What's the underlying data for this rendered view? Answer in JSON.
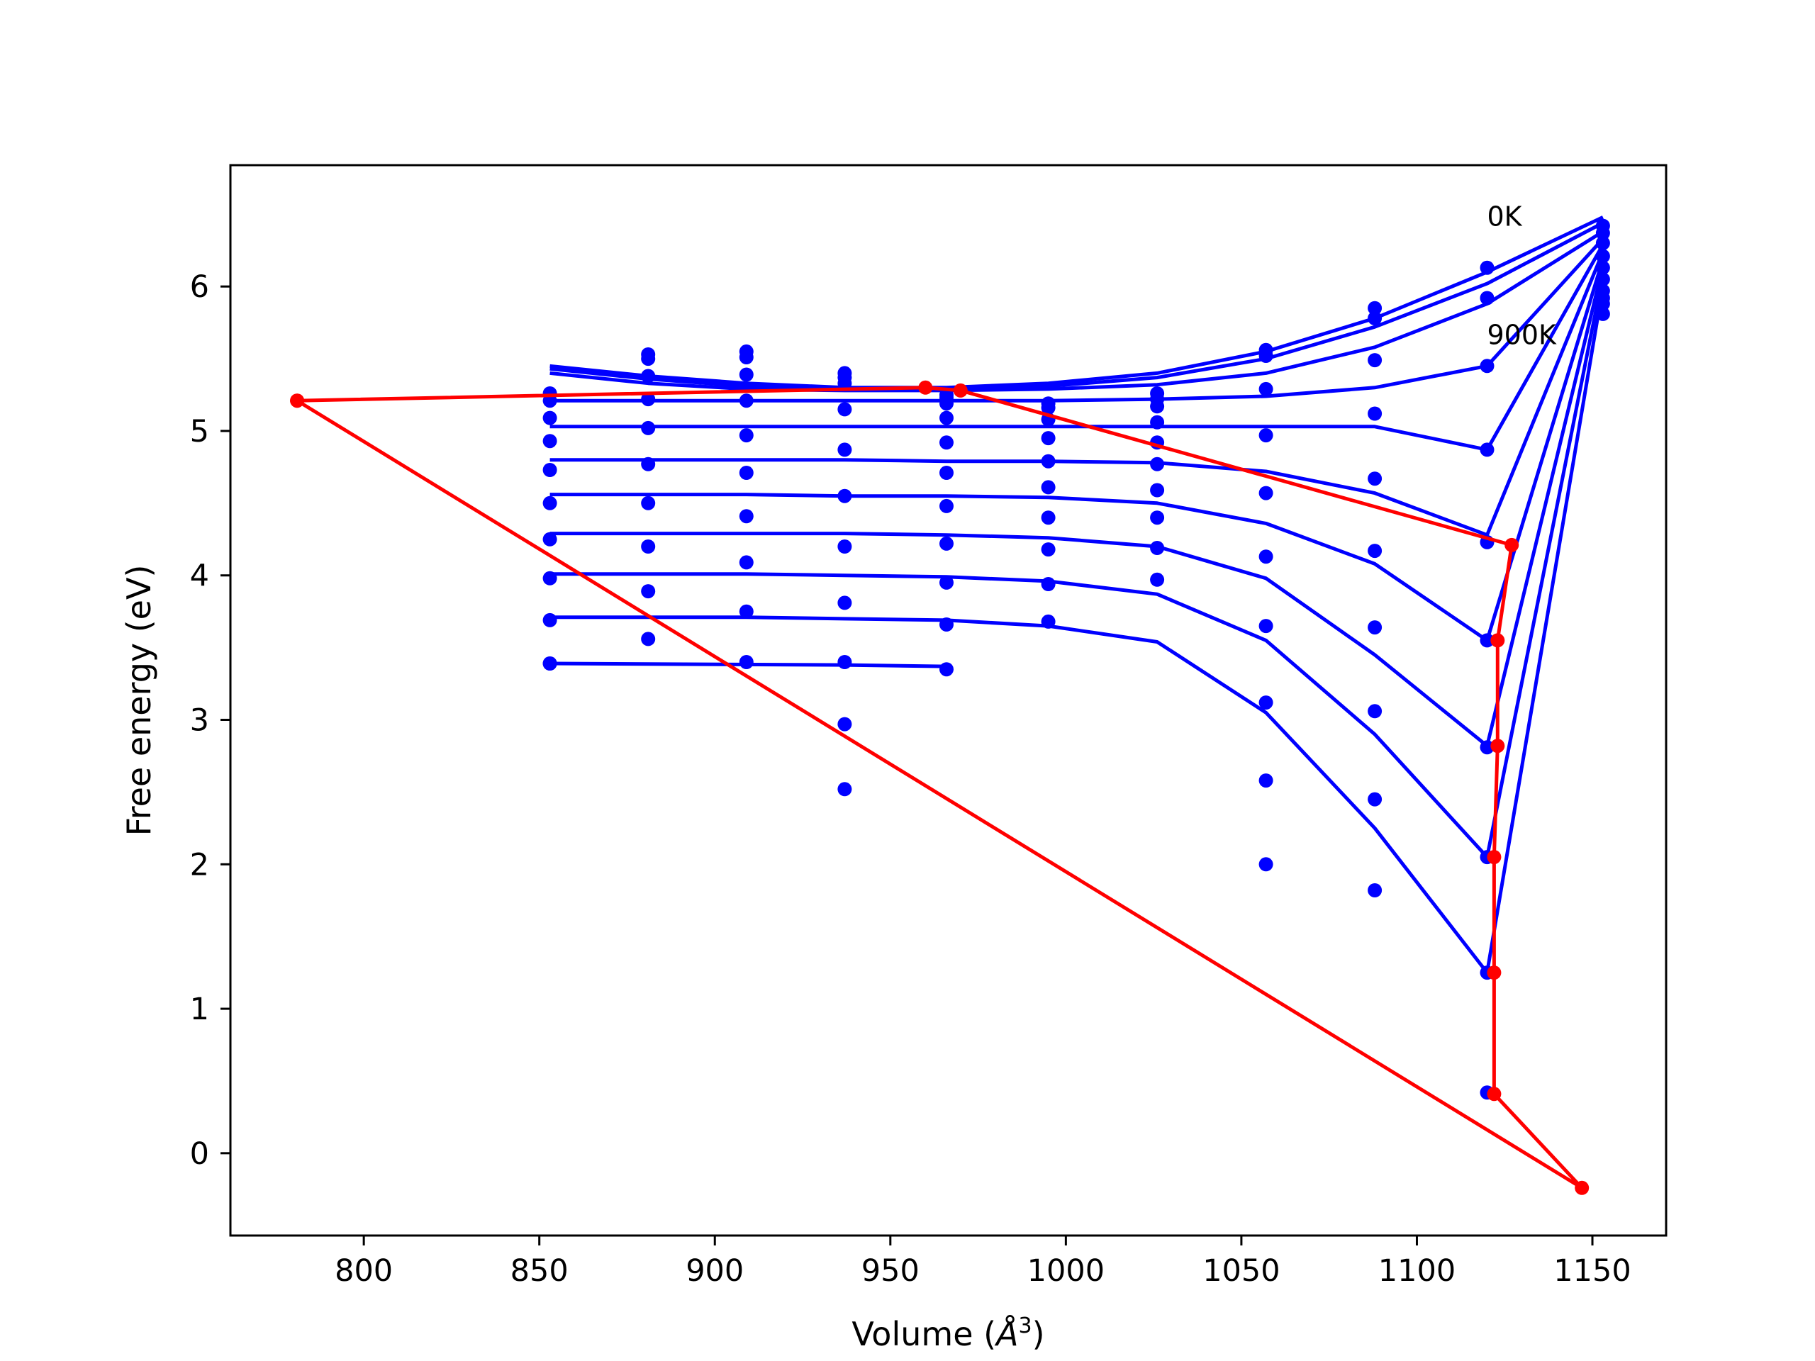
{
  "chart_data": {
    "type": "scatter",
    "xlabel_prefix": "Volume (",
    "xlabel_unit": "Å",
    "xlabel_exp": "3",
    "xlabel_suffix": ")",
    "ylabel": "Free energy (eV)",
    "xlim": [
      762,
      1171
    ],
    "ylim": [
      -0.57,
      6.84
    ],
    "xticks": [
      800,
      850,
      900,
      950,
      1000,
      1050,
      1100,
      1150
    ],
    "yticks": [
      0,
      1,
      2,
      3,
      4,
      5,
      6
    ],
    "grid": false,
    "annotations": [
      {
        "text": "0K",
        "x": 1120,
        "y": 6.42
      },
      {
        "text": "900K",
        "x": 1120,
        "y": 5.6
      }
    ],
    "colors": {
      "points": "#0000ff",
      "fits": "#0000ff",
      "path": "#ff0000"
    },
    "series": [
      {
        "x": [
          853,
          881,
          909,
          937,
          966,
          995,
          1026,
          1057,
          1088,
          1120,
          1153
        ],
        "y": [
          5.26,
          5.53,
          5.55,
          5.4,
          5.25,
          5.19,
          5.26,
          5.56,
          5.85,
          6.13,
          6.42
        ],
        "fit_y": [
          5.45,
          5.38,
          5.33,
          5.3,
          5.3,
          5.33,
          5.4,
          5.55,
          5.78,
          6.1,
          6.48
        ]
      },
      {
        "x": [
          853,
          881,
          909,
          937,
          966,
          995,
          1026,
          1057,
          1088,
          1120,
          1153
        ],
        "y": [
          5.21,
          5.5,
          5.51,
          5.37,
          5.23,
          5.16,
          5.22,
          5.52,
          5.78,
          5.92,
          6.37
        ],
        "fit_y": [
          5.43,
          5.36,
          5.31,
          5.29,
          5.29,
          5.31,
          5.37,
          5.5,
          5.72,
          6.02,
          6.44
        ]
      },
      {
        "x": [
          853,
          881,
          909,
          937,
          966,
          995,
          1026,
          1057,
          1088,
          1120,
          1153
        ],
        "y": [
          5.09,
          5.38,
          5.39,
          5.33,
          5.19,
          5.08,
          5.17,
          5.29,
          5.49,
          5.45,
          6.3
        ],
        "fit_y": [
          5.4,
          5.33,
          5.29,
          5.28,
          5.28,
          5.29,
          5.32,
          5.4,
          5.58,
          5.88,
          6.38
        ]
      },
      {
        "x": [
          853,
          881,
          909,
          937,
          966,
          995,
          1026,
          1057,
          1088,
          1120,
          1153
        ],
        "y": [
          4.93,
          5.22,
          5.21,
          5.15,
          5.09,
          4.95,
          5.06,
          4.97,
          5.12,
          4.87,
          6.21
        ],
        "fit_y": [
          5.21,
          5.21,
          5.21,
          5.21,
          5.21,
          5.21,
          5.22,
          5.24,
          5.3,
          5.45,
          6.33
        ]
      },
      {
        "x": [
          853,
          881,
          909,
          937,
          966,
          995,
          1026,
          1057,
          1088,
          1120,
          1153
        ],
        "y": [
          4.73,
          5.02,
          4.97,
          4.87,
          4.92,
          4.79,
          4.92,
          4.57,
          4.67,
          4.23,
          6.13
        ],
        "fit_y": [
          5.03,
          5.03,
          5.03,
          5.03,
          5.03,
          5.03,
          5.03,
          5.03,
          5.03,
          4.87,
          6.29
        ]
      },
      {
        "x": [
          853,
          881,
          909,
          937,
          966,
          995,
          1026,
          1057,
          1088,
          1120,
          1153
        ],
        "y": [
          4.5,
          4.77,
          4.71,
          4.55,
          4.71,
          4.61,
          4.77,
          4.13,
          4.17,
          3.55,
          6.05
        ],
        "fit_y": [
          4.8,
          4.8,
          4.8,
          4.8,
          4.79,
          4.79,
          4.78,
          4.72,
          4.57,
          4.28,
          6.24
        ]
      },
      {
        "x": [
          853,
          881,
          909,
          937,
          966,
          995,
          1026,
          1057,
          1088,
          1120,
          1153
        ],
        "y": [
          4.25,
          4.5,
          4.41,
          4.2,
          4.48,
          4.4,
          4.59,
          3.65,
          3.64,
          2.81,
          5.97
        ],
        "fit_y": [
          4.56,
          4.56,
          4.56,
          4.55,
          4.55,
          4.54,
          4.5,
          4.36,
          4.08,
          3.55,
          6.19
        ]
      },
      {
        "x": [
          853,
          881,
          909,
          937,
          966,
          995,
          1026,
          1057,
          1088,
          1120,
          1153
        ],
        "y": [
          3.98,
          4.2,
          4.09,
          3.81,
          4.22,
          4.18,
          4.4,
          3.12,
          3.06,
          2.05,
          5.88
        ],
        "fit_y": [
          4.29,
          4.29,
          4.29,
          4.29,
          4.28,
          4.26,
          4.2,
          3.98,
          3.45,
          2.82,
          6.14
        ]
      },
      {
        "x": [
          853,
          881,
          909,
          937,
          966,
          995,
          1026,
          1057,
          1088,
          1120,
          1153
        ],
        "y": [
          3.69,
          3.89,
          3.75,
          3.4,
          3.95,
          3.94,
          4.19,
          2.58,
          2.45,
          1.25,
          5.81
        ],
        "fit_y": [
          4.01,
          4.01,
          4.01,
          4.0,
          3.99,
          3.96,
          3.87,
          3.55,
          2.9,
          2.05,
          6.08
        ]
      },
      {
        "x": [
          853,
          881,
          909,
          937,
          966,
          995,
          1026,
          1057,
          1088,
          1120,
          1153
        ],
        "y": [
          3.39,
          3.56,
          3.4,
          2.97,
          3.66,
          3.68,
          3.97,
          2.0,
          1.82,
          0.42,
          5.92
        ],
        "fit_y": [
          3.71,
          3.71,
          3.71,
          3.7,
          3.69,
          3.65,
          3.54,
          3.05,
          2.25,
          1.25,
          6.0
        ]
      },
      {
        "x": [
          853,
          937,
          966
        ],
        "y": [
          3.39,
          2.52,
          3.35
        ],
        "fit_y": [
          3.39,
          3.38,
          3.37
        ]
      }
    ],
    "path": {
      "x": [
        781,
        1147,
        1122,
        1122,
        1122,
        1123,
        1123,
        1127,
        970,
        960,
        781
      ],
      "y": [
        5.21,
        -0.24,
        0.41,
        1.25,
        2.05,
        2.82,
        3.55,
        4.21,
        5.28,
        5.3,
        5.21
      ]
    }
  }
}
